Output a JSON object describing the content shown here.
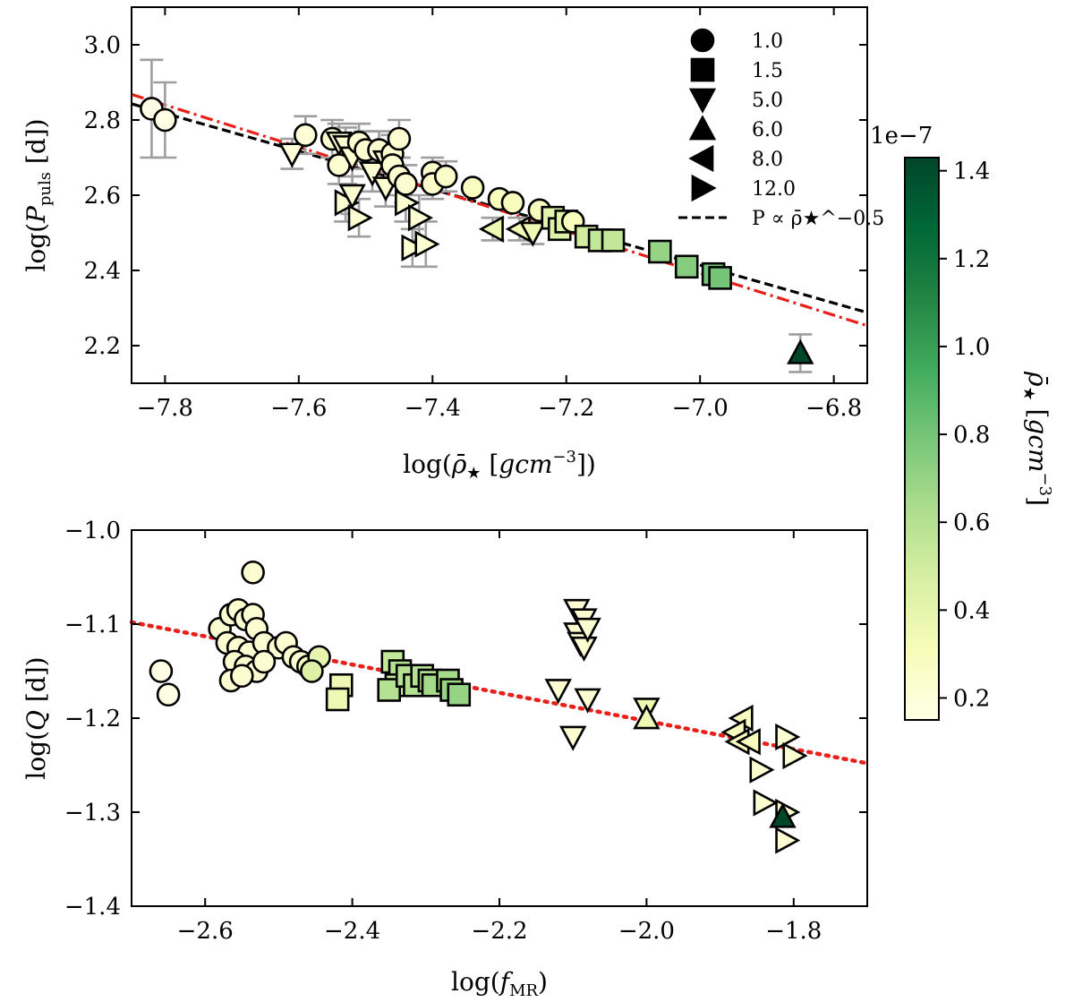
{
  "chart_data": [
    {
      "type": "scatter",
      "xlabel": "log(ρ̄★ [gcm⁻³])",
      "ylabel": "log(P_puls [d])",
      "xlim": [
        -7.85,
        -6.75
      ],
      "ylim": [
        2.1,
        3.1
      ],
      "xticks": [
        -7.8,
        -7.6,
        -7.4,
        -7.2,
        -7.0,
        -6.8
      ],
      "yticks": [
        2.2,
        2.4,
        2.6,
        2.8,
        3.0
      ],
      "xtick_labels": [
        "−7.8",
        "−7.6",
        "−7.4",
        "−7.2",
        "−7.0",
        "−6.8"
      ],
      "ytick_labels": [
        "2.2",
        "2.4",
        "2.6",
        "2.8",
        "3.0"
      ],
      "legend": {
        "position": "top-right",
        "entries": [
          {
            "marker": "circle",
            "label": "1.0"
          },
          {
            "marker": "square",
            "label": "1.5"
          },
          {
            "marker": "triangle-down",
            "label": "5.0"
          },
          {
            "marker": "triangle-up",
            "label": "6.0"
          },
          {
            "marker": "triangle-left",
            "label": "8.0"
          },
          {
            "marker": "triangle-right",
            "label": "12.0"
          },
          {
            "marker": "dashed-line",
            "label": "P ∝ ρ̄★^−0.5"
          }
        ]
      },
      "lines": [
        {
          "name": "P ∝ ρ̄^-0.5",
          "style": "dashed",
          "color": "#000000",
          "x": [
            -7.85,
            -6.75
          ],
          "y": [
            2.843,
            2.288
          ]
        },
        {
          "name": "fit",
          "style": "dashdot",
          "color": "#e8201a",
          "x": [
            -7.85,
            -6.75
          ],
          "y": [
            2.868,
            2.253
          ]
        }
      ],
      "points": [
        {
          "x": -7.82,
          "y": 2.83,
          "m": "circle",
          "c": 0.15,
          "err": 0.13
        },
        {
          "x": -7.8,
          "y": 2.8,
          "m": "circle",
          "c": 0.15,
          "err": 0.1
        },
        {
          "x": -7.61,
          "y": 2.71,
          "m": "triangle-down",
          "c": 0.2,
          "err": 0.04
        },
        {
          "x": -7.59,
          "y": 2.76,
          "m": "circle",
          "c": 0.2,
          "err": 0.05
        },
        {
          "x": -7.55,
          "y": 2.75,
          "m": "circle",
          "c": 0.22,
          "err": 0.05
        },
        {
          "x": -7.54,
          "y": 2.74,
          "m": "triangle-down",
          "c": 0.22,
          "err": 0.05
        },
        {
          "x": -7.53,
          "y": 2.73,
          "m": "triangle-down",
          "c": 0.22,
          "err": 0.05
        },
        {
          "x": -7.54,
          "y": 2.68,
          "m": "circle",
          "c": 0.22,
          "err": 0.05
        },
        {
          "x": -7.52,
          "y": 2.7,
          "m": "triangle-down",
          "c": 0.22,
          "err": 0.05
        },
        {
          "x": -7.51,
          "y": 2.74,
          "m": "circle",
          "c": 0.22,
          "err": 0.05
        },
        {
          "x": -7.5,
          "y": 2.72,
          "m": "circle",
          "c": 0.22,
          "err": 0.05
        },
        {
          "x": -7.49,
          "y": 2.66,
          "m": "triangle-down",
          "c": 0.22,
          "err": 0.05
        },
        {
          "x": -7.48,
          "y": 2.72,
          "m": "circle",
          "c": 0.22,
          "err": 0.05
        },
        {
          "x": -7.47,
          "y": 2.69,
          "m": "triangle-down",
          "c": 0.22,
          "err": 0.05
        },
        {
          "x": -7.46,
          "y": 2.71,
          "m": "circle",
          "c": 0.22,
          "err": 0.05
        },
        {
          "x": -7.47,
          "y": 2.62,
          "m": "triangle-down",
          "c": 0.22,
          "err": 0.05
        },
        {
          "x": -7.46,
          "y": 2.68,
          "m": "circle",
          "c": 0.22,
          "err": 0.05
        },
        {
          "x": -7.45,
          "y": 2.75,
          "m": "circle",
          "c": 0.22,
          "err": 0.05
        },
        {
          "x": -7.45,
          "y": 2.65,
          "m": "circle",
          "c": 0.22,
          "err": 0.05
        },
        {
          "x": -7.44,
          "y": 2.63,
          "m": "circle",
          "c": 0.22,
          "err": 0.05
        },
        {
          "x": -7.53,
          "y": 2.58,
          "m": "triangle-right",
          "c": 0.22,
          "err": 0.05
        },
        {
          "x": -7.52,
          "y": 2.6,
          "m": "triangle-down",
          "c": 0.22,
          "err": 0.05
        },
        {
          "x": -7.51,
          "y": 2.54,
          "m": "triangle-right",
          "c": 0.22,
          "err": 0.05
        },
        {
          "x": -7.44,
          "y": 2.58,
          "m": "triangle-right",
          "c": 0.22,
          "err": 0.05
        },
        {
          "x": -7.42,
          "y": 2.54,
          "m": "triangle-right",
          "c": 0.22,
          "err": 0.06
        },
        {
          "x": -7.43,
          "y": 2.46,
          "m": "triangle-right",
          "c": 0.22,
          "err": 0.05
        },
        {
          "x": -7.41,
          "y": 2.47,
          "m": "triangle-right",
          "c": 0.22,
          "err": 0.06
        },
        {
          "x": -7.4,
          "y": 2.66,
          "m": "circle",
          "c": 0.25,
          "err": 0.04
        },
        {
          "x": -7.4,
          "y": 2.63,
          "m": "circle",
          "c": 0.25,
          "err": 0.04
        },
        {
          "x": -7.38,
          "y": 2.65,
          "m": "circle",
          "c": 0.25,
          "err": 0.04
        },
        {
          "x": -7.34,
          "y": 2.62,
          "m": "circle",
          "c": 0.28,
          "err": 0.0
        },
        {
          "x": -7.3,
          "y": 2.59,
          "m": "circle",
          "c": 0.3,
          "err": 0.0
        },
        {
          "x": -7.28,
          "y": 2.58,
          "m": "circle",
          "c": 0.3,
          "err": 0.0
        },
        {
          "x": -7.31,
          "y": 2.51,
          "m": "triangle-left",
          "c": 0.35,
          "err": 0.03
        },
        {
          "x": -7.27,
          "y": 2.51,
          "m": "triangle-left",
          "c": 0.35,
          "err": 0.03
        },
        {
          "x": -7.25,
          "y": 2.5,
          "m": "triangle-down",
          "c": 0.35,
          "err": 0.03
        },
        {
          "x": -7.24,
          "y": 2.56,
          "m": "circle",
          "c": 0.3,
          "err": 0.0
        },
        {
          "x": -7.22,
          "y": 2.54,
          "m": "square",
          "c": 0.4,
          "err": 0.0
        },
        {
          "x": -7.21,
          "y": 2.51,
          "m": "square",
          "c": 0.45,
          "err": 0.0
        },
        {
          "x": -7.2,
          "y": 2.53,
          "m": "square",
          "c": 0.45,
          "err": 0.0
        },
        {
          "x": -7.19,
          "y": 2.53,
          "m": "circle",
          "c": 0.3,
          "err": 0.0
        },
        {
          "x": -7.17,
          "y": 2.49,
          "m": "square",
          "c": 0.5,
          "err": 0.0
        },
        {
          "x": -7.15,
          "y": 2.48,
          "m": "square",
          "c": 0.55,
          "err": 0.0
        },
        {
          "x": -7.13,
          "y": 2.48,
          "m": "square",
          "c": 0.55,
          "err": 0.0
        },
        {
          "x": -7.06,
          "y": 2.45,
          "m": "square",
          "c": 0.7,
          "err": 0.0
        },
        {
          "x": -7.02,
          "y": 2.41,
          "m": "square",
          "c": 0.75,
          "err": 0.0
        },
        {
          "x": -6.98,
          "y": 2.39,
          "m": "square",
          "c": 0.8,
          "err": 0.0
        },
        {
          "x": -6.97,
          "y": 2.38,
          "m": "square",
          "c": 0.8,
          "err": 0.0
        },
        {
          "x": -6.85,
          "y": 2.18,
          "m": "triangle-up",
          "c": 1.42,
          "err": 0.05
        }
      ]
    },
    {
      "type": "scatter",
      "xlabel": "log(f_MR)",
      "ylabel": "log(Q [d])",
      "xlim": [
        -2.7,
        -1.7
      ],
      "ylim": [
        -1.4,
        -1.0
      ],
      "xticks": [
        -2.6,
        -2.4,
        -2.2,
        -2.0,
        -1.8
      ],
      "yticks": [
        -1.4,
        -1.3,
        -1.2,
        -1.1,
        -1.0
      ],
      "xtick_labels": [
        "−2.6",
        "−2.4",
        "−2.2",
        "−2.0",
        "−1.8"
      ],
      "ytick_labels": [
        "−1.4",
        "−1.3",
        "−1.2",
        "−1.1",
        "−1.0"
      ],
      "lines": [
        {
          "name": "fit",
          "style": "dotted",
          "color": "#e8201a",
          "x": [
            -2.7,
            -1.7
          ],
          "y": [
            -1.098,
            -1.248
          ]
        }
      ],
      "points": [
        {
          "x": -2.66,
          "y": -1.15,
          "m": "circle",
          "c": 0.15
        },
        {
          "x": -2.65,
          "y": -1.175,
          "m": "circle",
          "c": 0.15
        },
        {
          "x": -2.535,
          "y": -1.045,
          "m": "circle",
          "c": 0.22
        },
        {
          "x": -2.58,
          "y": -1.105,
          "m": "circle",
          "c": 0.22
        },
        {
          "x": -2.565,
          "y": -1.09,
          "m": "circle",
          "c": 0.22
        },
        {
          "x": -2.555,
          "y": -1.085,
          "m": "circle",
          "c": 0.22
        },
        {
          "x": -2.545,
          "y": -1.095,
          "m": "circle",
          "c": 0.22
        },
        {
          "x": -2.535,
          "y": -1.09,
          "m": "circle",
          "c": 0.22
        },
        {
          "x": -2.53,
          "y": -1.105,
          "m": "circle",
          "c": 0.22
        },
        {
          "x": -2.57,
          "y": -1.12,
          "m": "circle",
          "c": 0.22
        },
        {
          "x": -2.555,
          "y": -1.125,
          "m": "circle",
          "c": 0.22
        },
        {
          "x": -2.54,
          "y": -1.13,
          "m": "circle",
          "c": 0.22
        },
        {
          "x": -2.52,
          "y": -1.12,
          "m": "circle",
          "c": 0.22
        },
        {
          "x": -2.5,
          "y": -1.125,
          "m": "circle",
          "c": 0.22
        },
        {
          "x": -2.49,
          "y": -1.12,
          "m": "circle",
          "c": 0.22
        },
        {
          "x": -2.56,
          "y": -1.14,
          "m": "circle",
          "c": 0.22
        },
        {
          "x": -2.545,
          "y": -1.145,
          "m": "circle",
          "c": 0.22
        },
        {
          "x": -2.53,
          "y": -1.15,
          "m": "circle",
          "c": 0.22
        },
        {
          "x": -2.52,
          "y": -1.14,
          "m": "circle",
          "c": 0.22
        },
        {
          "x": -2.565,
          "y": -1.16,
          "m": "circle",
          "c": 0.22
        },
        {
          "x": -2.55,
          "y": -1.155,
          "m": "circle",
          "c": 0.22
        },
        {
          "x": -2.48,
          "y": -1.135,
          "m": "circle",
          "c": 0.22
        },
        {
          "x": -2.47,
          "y": -1.14,
          "m": "circle",
          "c": 0.22
        },
        {
          "x": -2.46,
          "y": -1.145,
          "m": "circle",
          "c": 0.3
        },
        {
          "x": -2.445,
          "y": -1.135,
          "m": "circle",
          "c": 0.4
        },
        {
          "x": -2.455,
          "y": -1.15,
          "m": "circle",
          "c": 0.45
        },
        {
          "x": -2.415,
          "y": -1.165,
          "m": "square",
          "c": 0.35
        },
        {
          "x": -2.42,
          "y": -1.18,
          "m": "square",
          "c": 0.35
        },
        {
          "x": -2.345,
          "y": -1.14,
          "m": "square",
          "c": 0.55
        },
        {
          "x": -2.335,
          "y": -1.15,
          "m": "square",
          "c": 0.6
        },
        {
          "x": -2.34,
          "y": -1.165,
          "m": "square",
          "c": 0.55
        },
        {
          "x": -2.35,
          "y": -1.17,
          "m": "square",
          "c": 0.6
        },
        {
          "x": -2.325,
          "y": -1.155,
          "m": "square",
          "c": 0.6
        },
        {
          "x": -2.315,
          "y": -1.165,
          "m": "square",
          "c": 0.6
        },
        {
          "x": -2.305,
          "y": -1.155,
          "m": "square",
          "c": 0.6
        },
        {
          "x": -2.295,
          "y": -1.16,
          "m": "square",
          "c": 0.6
        },
        {
          "x": -2.29,
          "y": -1.165,
          "m": "square",
          "c": 0.65
        },
        {
          "x": -2.27,
          "y": -1.16,
          "m": "square",
          "c": 0.65
        },
        {
          "x": -2.265,
          "y": -1.17,
          "m": "square",
          "c": 0.7
        },
        {
          "x": -2.255,
          "y": -1.175,
          "m": "square",
          "c": 0.7
        },
        {
          "x": -2.095,
          "y": -1.085,
          "m": "triangle-down",
          "c": 0.22
        },
        {
          "x": -2.085,
          "y": -1.095,
          "m": "triangle-down",
          "c": 0.22
        },
        {
          "x": -2.095,
          "y": -1.11,
          "m": "triangle-down",
          "c": 0.22
        },
        {
          "x": -2.09,
          "y": -1.12,
          "m": "triangle-down",
          "c": 0.22
        },
        {
          "x": -2.085,
          "y": -1.125,
          "m": "triangle-down",
          "c": 0.22
        },
        {
          "x": -2.08,
          "y": -1.105,
          "m": "triangle-down",
          "c": 0.22
        },
        {
          "x": -2.12,
          "y": -1.17,
          "m": "triangle-down",
          "c": 0.22
        },
        {
          "x": -2.08,
          "y": -1.18,
          "m": "triangle-down",
          "c": 0.22
        },
        {
          "x": -2.1,
          "y": -1.22,
          "m": "triangle-down",
          "c": 0.22
        },
        {
          "x": -2.0,
          "y": -1.19,
          "m": "triangle-down",
          "c": 0.35
        },
        {
          "x": -2.0,
          "y": -1.2,
          "m": "triangle-up",
          "c": 0.35
        },
        {
          "x": -1.87,
          "y": -1.2,
          "m": "triangle-left",
          "c": 0.3
        },
        {
          "x": -1.88,
          "y": -1.215,
          "m": "triangle-left",
          "c": 0.3
        },
        {
          "x": -1.875,
          "y": -1.225,
          "m": "triangle-left",
          "c": 0.3
        },
        {
          "x": -1.86,
          "y": -1.225,
          "m": "triangle-left",
          "c": 0.3
        },
        {
          "x": -1.81,
          "y": -1.22,
          "m": "triangle-right",
          "c": 0.22
        },
        {
          "x": -1.8,
          "y": -1.24,
          "m": "triangle-right",
          "c": 0.22
        },
        {
          "x": -1.845,
          "y": -1.255,
          "m": "triangle-right",
          "c": 0.22
        },
        {
          "x": -1.84,
          "y": -1.29,
          "m": "triangle-right",
          "c": 0.22
        },
        {
          "x": -1.81,
          "y": -1.3,
          "m": "triangle-right",
          "c": 0.22
        },
        {
          "x": -1.815,
          "y": -1.305,
          "m": "triangle-up",
          "c": 1.42
        },
        {
          "x": -1.81,
          "y": -1.33,
          "m": "triangle-right",
          "c": 0.22
        }
      ]
    }
  ],
  "colorbar": {
    "label": "ρ̄★ [gcm⁻³]",
    "exponent": "1e−7",
    "range": [
      0.15,
      1.43
    ],
    "ticks": [
      0.2,
      0.4,
      0.6,
      0.8,
      1.0,
      1.2,
      1.4
    ],
    "tick_labels": [
      "0.2",
      "0.4",
      "0.6",
      "0.8",
      "1.0",
      "1.2",
      "1.4"
    ],
    "colors": [
      "#ffffe5",
      "#f7fcb9",
      "#d9f0a3",
      "#addd8e",
      "#78c679",
      "#41ab5d",
      "#238443",
      "#006837",
      "#004529"
    ]
  },
  "errorbar_color": "#9e9e9e"
}
